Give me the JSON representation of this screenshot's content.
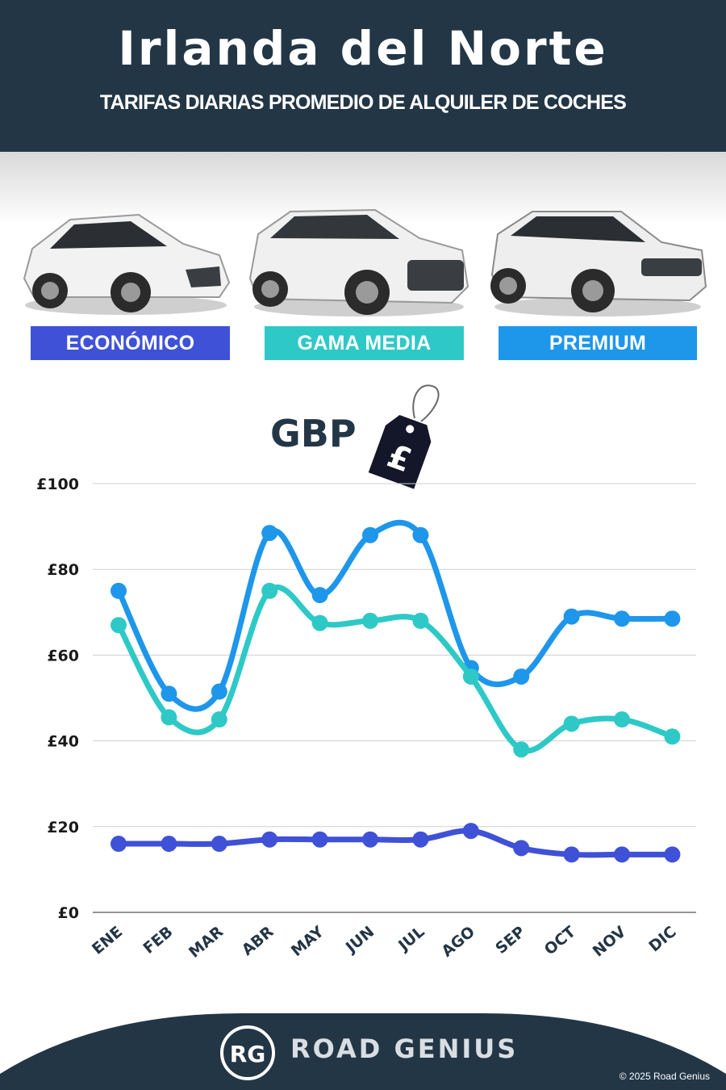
{
  "header": {
    "title": "Irlanda del Norte",
    "subtitle": "TARIFAS DIARIAS PROMEDIO DE ALQUILER DE COCHES"
  },
  "categories": [
    {
      "label": "ECONÓMICO",
      "color": "#3f51d6",
      "icon": "hatchback-car-image"
    },
    {
      "label": "GAMA MEDIA",
      "color": "#2ec9c6",
      "icon": "suv-car-image"
    },
    {
      "label": "PREMIUM",
      "color": "#1e96ea",
      "icon": "luxury-suv-car-image"
    }
  ],
  "currency": {
    "label": "GBP",
    "icon": "pound-price-tag-icon"
  },
  "chart_data": {
    "type": "line",
    "categories": [
      "ENE",
      "FEB",
      "MAR",
      "ABR",
      "MAY",
      "JUN",
      "JUL",
      "AGO",
      "SEP",
      "OCT",
      "NOV",
      "DIC"
    ],
    "y_ticks": [
      "£0",
      "£20",
      "£40",
      "£60",
      "£80",
      "£100"
    ],
    "ylim": [
      0,
      100
    ],
    "grid": true,
    "series": [
      {
        "name": "PREMIUM",
        "color": "#1e96ea",
        "values": [
          75,
          51,
          51.5,
          88.5,
          74,
          88,
          88,
          57,
          55,
          69,
          68.5,
          68.5
        ]
      },
      {
        "name": "GAMA MEDIA",
        "color": "#2ec9c6",
        "values": [
          67,
          45.5,
          45,
          75,
          67.5,
          68,
          68,
          55,
          38,
          44,
          45,
          41
        ]
      },
      {
        "name": "ECONÓMICO",
        "color": "#3f51d6",
        "values": [
          16,
          16,
          16,
          17,
          17,
          17,
          17,
          19,
          15,
          13.5,
          13.5,
          13.5
        ]
      }
    ]
  },
  "footer": {
    "brand": "ROAD GENIUS",
    "logo_text": "RG",
    "copyright": "© 2025 Road Genius",
    "background": "#233646"
  }
}
